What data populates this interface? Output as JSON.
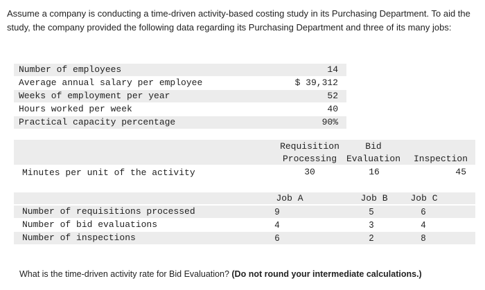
{
  "intro": "Assume a company is conducting a time-driven activity-based costing study in its Purchasing Department. To aid the study, the company provided the following data regarding its Purchasing Department and three of its many jobs:",
  "department": {
    "rows": [
      [
        "Number of employees",
        "14"
      ],
      [
        "Average annual salary per employee",
        "$ 39,312"
      ],
      [
        "Weeks of employment per year",
        "52"
      ],
      [
        "Hours worked per week",
        "40"
      ],
      [
        "Practical capacity percentage",
        "90%"
      ]
    ]
  },
  "activities": {
    "headers": [
      [
        "Requisition",
        "Processing"
      ],
      [
        "Bid",
        "Evaluation"
      ],
      [
        "Inspection"
      ]
    ],
    "row_label": "Minutes per unit of the activity",
    "values": [
      "30",
      "16",
      "45"
    ]
  },
  "jobs": {
    "headers": [
      "Job A",
      "Job B",
      "Job C"
    ],
    "rows": [
      [
        "Number of requisitions processed",
        "9",
        "5",
        "6"
      ],
      [
        "Number of bid evaluations",
        "4",
        "3",
        "4"
      ],
      [
        "Number of inspections",
        "6",
        "2",
        "8"
      ]
    ]
  },
  "question": {
    "text": "What is the time-driven activity rate for Bid Evaluation?",
    "note": "(Do not round your intermediate calculations.)"
  }
}
